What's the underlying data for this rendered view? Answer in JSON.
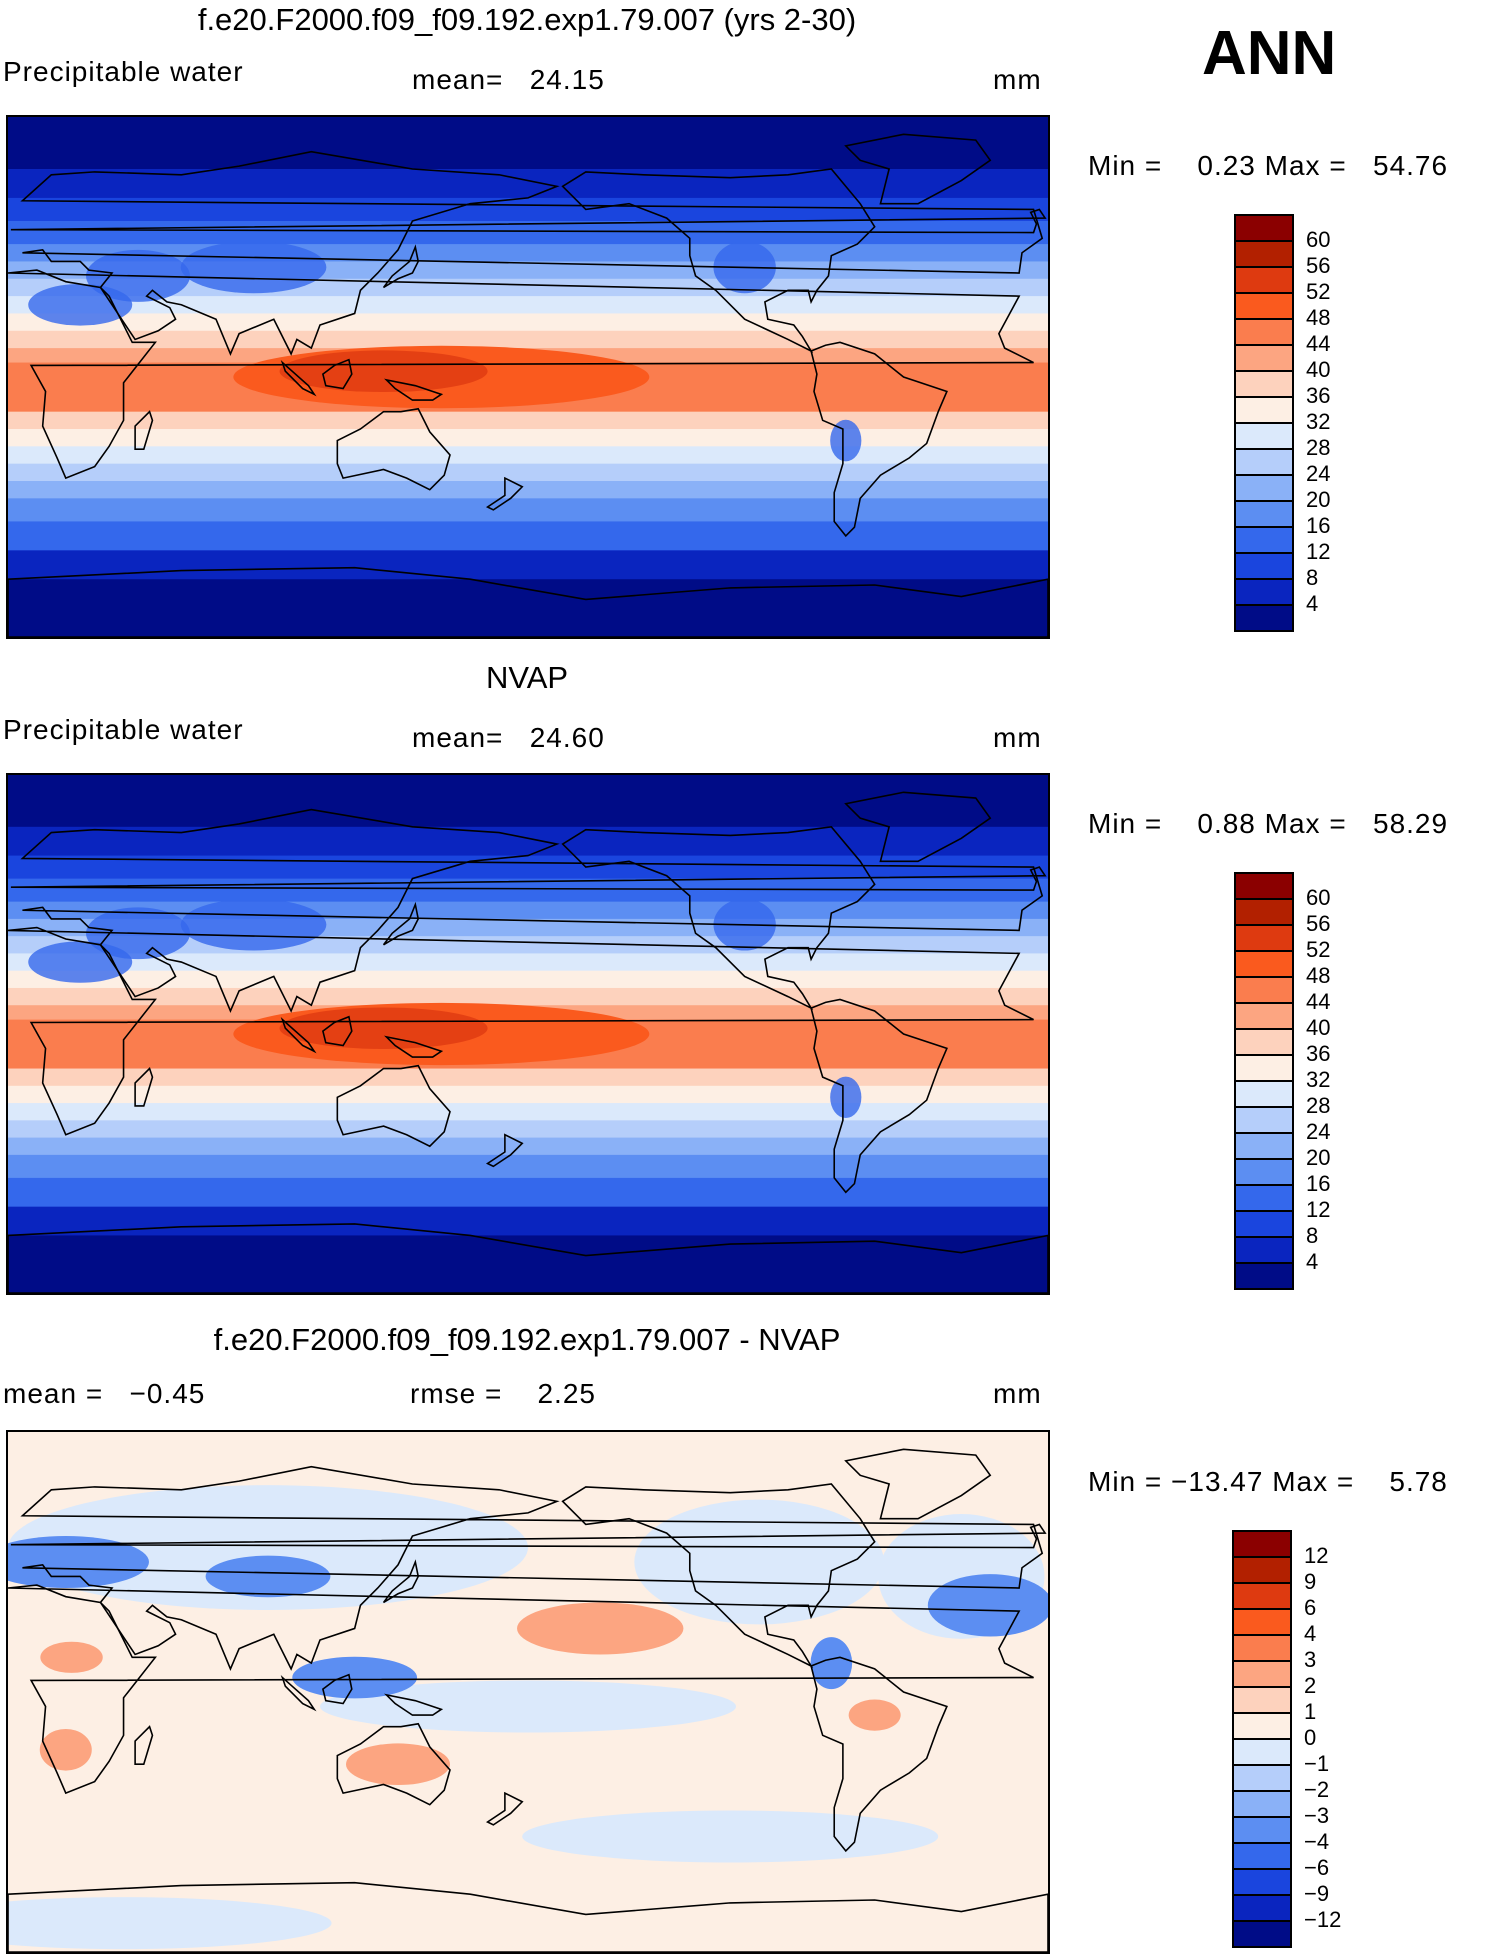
{
  "season": "ANN",
  "panels": [
    {
      "title": "f.e20.F2000.f09_f09.192.exp1.79.007 (yrs 2-30)",
      "variable": "Precipitable water",
      "stat1": "mean=   24.15",
      "stat2": "",
      "units": "mm",
      "minmax": "Min =    0.23 Max =   54.76",
      "kind": "abs"
    },
    {
      "title": "NVAP",
      "variable": "Precipitable water",
      "stat1": "mean=   24.60",
      "stat2": "",
      "units": "mm",
      "minmax": "Min =    0.88 Max =   58.29",
      "kind": "abs"
    },
    {
      "title": "f.e20.F2000.f09_f09.192.exp1.79.007 - NVAP",
      "variable": "",
      "stat1": "mean =   −0.45",
      "stat2": "rmse =    2.25",
      "units": "mm",
      "minmax": "Min = −13.47 Max =    5.78",
      "kind": "diff"
    }
  ],
  "colorbars": {
    "abs": {
      "levels": [
        "60",
        "56",
        "52",
        "48",
        "44",
        "40",
        "36",
        "32",
        "28",
        "24",
        "20",
        "16",
        "12",
        "8",
        "4"
      ],
      "colors": [
        "#8b0000",
        "#b22000",
        "#de3a10",
        "#fa5a1e",
        "#fa7d4e",
        "#fca581",
        "#fdd2bd",
        "#fdefe4",
        "#dbe9fb",
        "#b5cefa",
        "#8ab1f7",
        "#5c8ef2",
        "#3468ec",
        "#1a45de",
        "#0a25bf",
        "#000c87"
      ]
    },
    "diff": {
      "levels": [
        "12",
        "9",
        "6",
        "4",
        "3",
        "2",
        "1",
        "0",
        "−1",
        "−2",
        "−3",
        "−4",
        "−6",
        "−9",
        "−12"
      ],
      "colors": [
        "#8b0000",
        "#b22000",
        "#de3a10",
        "#fa5a1e",
        "#fa7d4e",
        "#fca581",
        "#fdd2bd",
        "#fdefe4",
        "#dbe9fb",
        "#b5cefa",
        "#8ab1f7",
        "#5c8ef2",
        "#3468ec",
        "#1a45de",
        "#0a25bf",
        "#000c87"
      ]
    }
  }
}
